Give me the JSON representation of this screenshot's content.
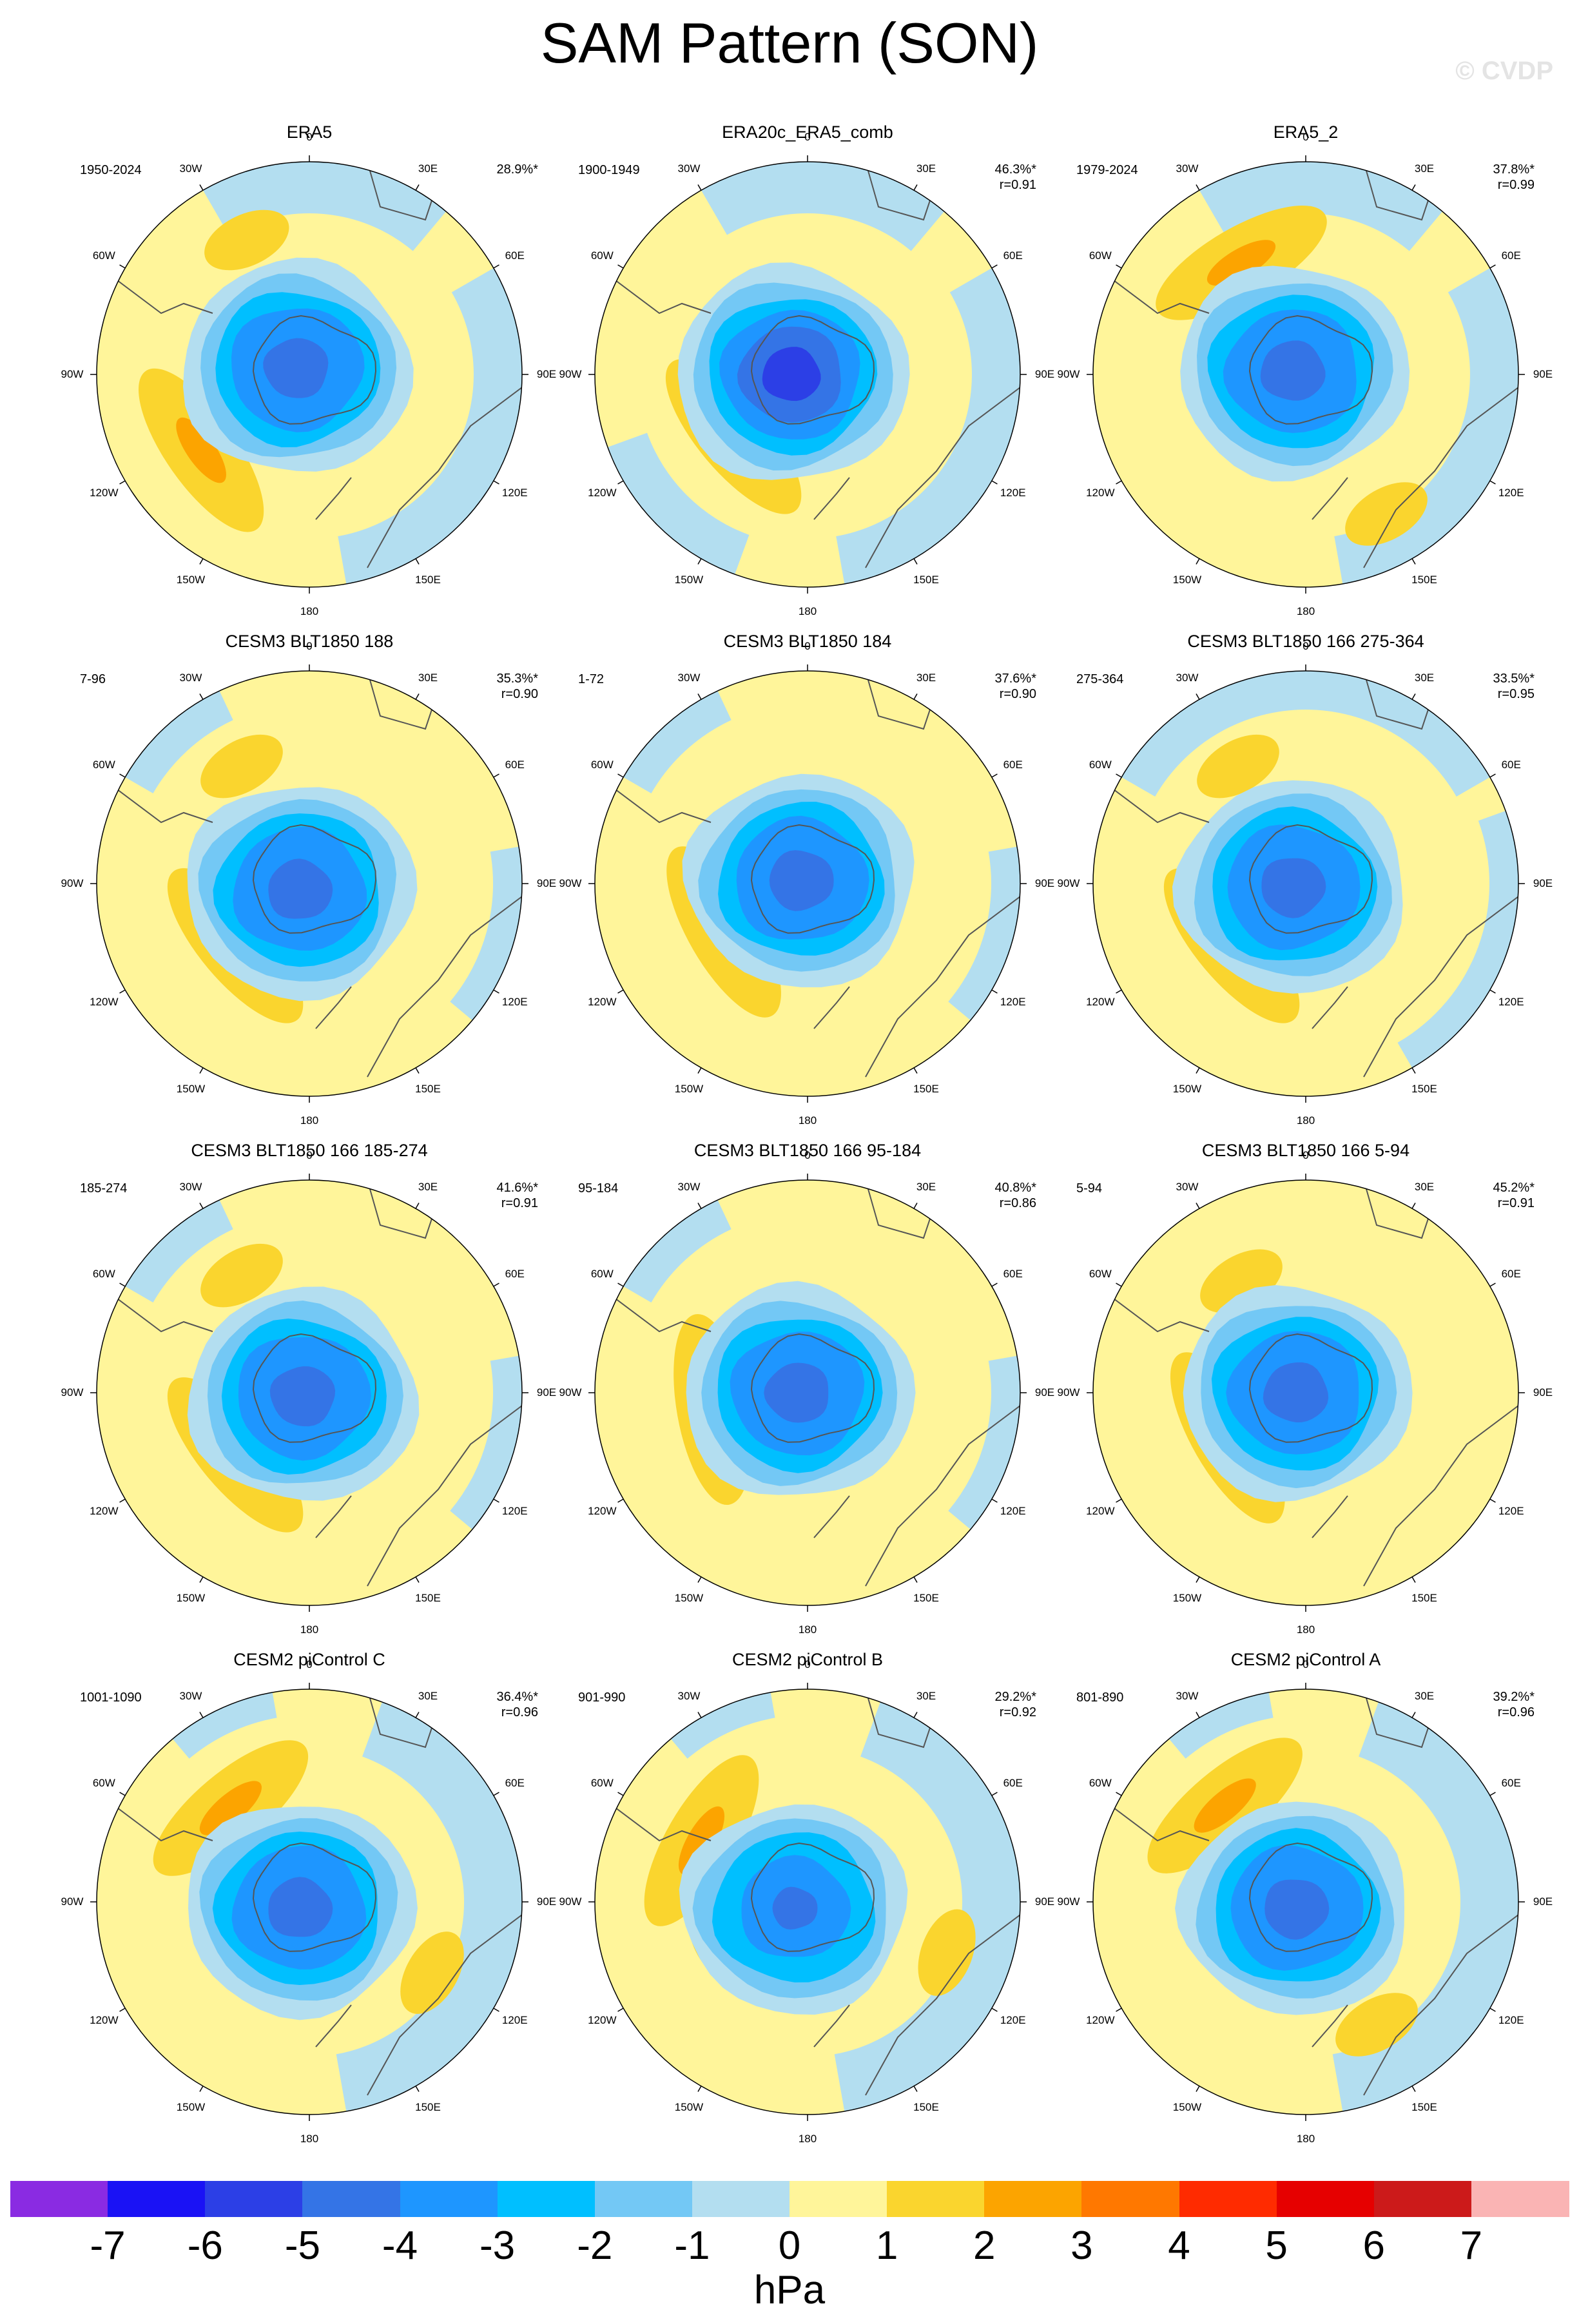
{
  "title": "SAM Pattern (SON)",
  "watermark": "© CVDP",
  "lon_labels": {
    "0": "0",
    "30e": "30E",
    "60e": "60E",
    "90e": "90E",
    "120e": "120E",
    "150e": "150E",
    "180": "180",
    "150w": "150W",
    "120w": "120W",
    "90w": "90W",
    "60w": "60W",
    "30w": "30W"
  },
  "panels": [
    {
      "title": "ERA5",
      "years": "1950-2024",
      "pct": "28.9%*",
      "r": ""
    },
    {
      "title": "ERA20c_ERA5_comb",
      "years": "1900-1949",
      "pct": "46.3%*",
      "r": "r=0.91"
    },
    {
      "title": "ERA5_2",
      "years": "1979-2024",
      "pct": "37.8%*",
      "r": "r=0.99"
    },
    {
      "title": "CESM3 BLT1850 188",
      "years": "7-96",
      "pct": "35.3%*",
      "r": "r=0.90"
    },
    {
      "title": "CESM3 BLT1850 184",
      "years": "1-72",
      "pct": "37.6%*",
      "r": "r=0.90"
    },
    {
      "title": "CESM3 BLT1850 166 275-364",
      "years": "275-364",
      "pct": "33.5%*",
      "r": "r=0.95"
    },
    {
      "title": "CESM3 BLT1850 166 185-274",
      "years": "185-274",
      "pct": "41.6%*",
      "r": "r=0.91"
    },
    {
      "title": "CESM3 BLT1850 166 95-184",
      "years": "95-184",
      "pct": "40.8%*",
      "r": "r=0.86"
    },
    {
      "title": "CESM3 BLT1850 166 5-94",
      "years": "5-94",
      "pct": "45.2%*",
      "r": "r=0.91"
    },
    {
      "title": "CESM2 piControl C",
      "years": "1001-1090",
      "pct": "36.4%*",
      "r": "r=0.96"
    },
    {
      "title": "CESM2 piControl B",
      "years": "901-990",
      "pct": "29.2%*",
      "r": "r=0.92"
    },
    {
      "title": "CESM2 piControl A",
      "years": "801-890",
      "pct": "39.2%*",
      "r": "r=0.96"
    }
  ],
  "colorbar": {
    "units": "hPa",
    "ticks": [
      "-7",
      "-6",
      "-5",
      "-4",
      "-3",
      "-2",
      "-1",
      "0",
      "1",
      "2",
      "3",
      "4",
      "5",
      "6",
      "7"
    ],
    "colors": [
      "#8a2be2",
      "#1a12f5",
      "#2c3fe6",
      "#3474e6",
      "#1e96ff",
      "#00bfff",
      "#73c8f5",
      "#b3def0",
      "#fff59a",
      "#fad52e",
      "#fca400",
      "#ff7800",
      "#ff2b00",
      "#e60000",
      "#cc1a1a",
      "#fab4b4"
    ]
  }
}
